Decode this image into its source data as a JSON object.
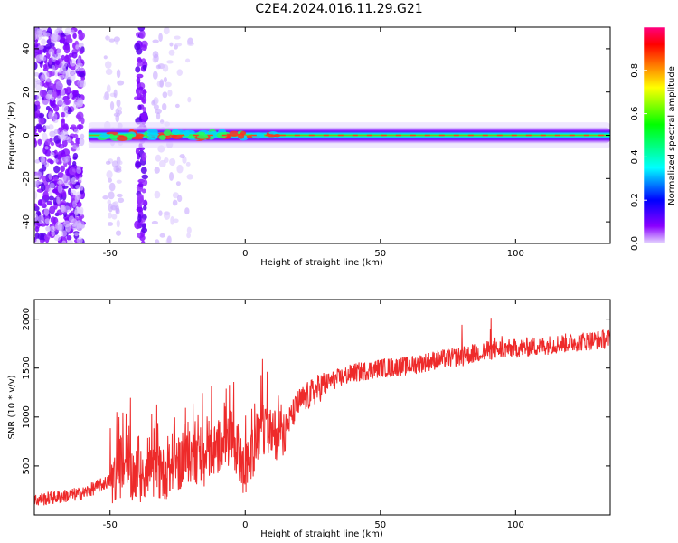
{
  "title": "C2E4.2024.016.11.29.G21",
  "chart_data": [
    {
      "type": "heatmap",
      "xlabel": "Height of straight line (km)",
      "ylabel": "Frequency (Hz)",
      "xlim": [
        -78,
        135
      ],
      "ylim": [
        -50,
        50
      ],
      "x_ticks": [
        -50,
        0,
        50,
        100
      ],
      "y_ticks": [
        -40,
        -20,
        0,
        20,
        40
      ],
      "colorbar": {
        "label": "Normalized spectral amplitude",
        "range": [
          0,
          1
        ],
        "ticks": [
          0.0,
          0.2,
          0.4,
          0.6,
          0.8
        ],
        "colormap": [
          "#e6d8ff",
          "#8a00ff",
          "#0000ff",
          "#00ffff",
          "#00ff00",
          "#ffff00",
          "#ff7f00",
          "#ff0000",
          "#ff0080"
        ]
      },
      "signal_band": {
        "center_frequency": 0,
        "x_start": -58,
        "x_end": 135,
        "half_width_hz": [
          2,
          3,
          3,
          2
        ],
        "half_width_x": [
          -58,
          0,
          100,
          135
        ]
      },
      "grid": false
    },
    {
      "type": "line",
      "xlabel": "Height of straight line (km)",
      "ylabel": "SNR (10 * v/v)",
      "xlim": [
        -78,
        135
      ],
      "ylim": [
        0,
        2200
      ],
      "x_ticks": [
        -50,
        0,
        50,
        100
      ],
      "y_ticks": [
        500,
        1000,
        1500,
        2000
      ],
      "series": [
        {
          "color": "#ee2a2a",
          "x": [
            -78,
            -70,
            -60,
            -50,
            -45,
            -40,
            -30,
            -20,
            -15,
            -10,
            -5,
            0,
            5,
            10,
            15,
            20,
            30,
            40,
            50,
            60,
            70,
            80,
            90,
            100,
            110,
            120,
            135
          ],
          "y": [
            150,
            180,
            220,
            350,
            450,
            400,
            420,
            600,
            550,
            700,
            800,
            400,
            850,
            800,
            900,
            1150,
            1350,
            1450,
            1500,
            1520,
            1580,
            1620,
            1680,
            1700,
            1730,
            1760,
            1800
          ]
        }
      ],
      "grid": false
    }
  ]
}
